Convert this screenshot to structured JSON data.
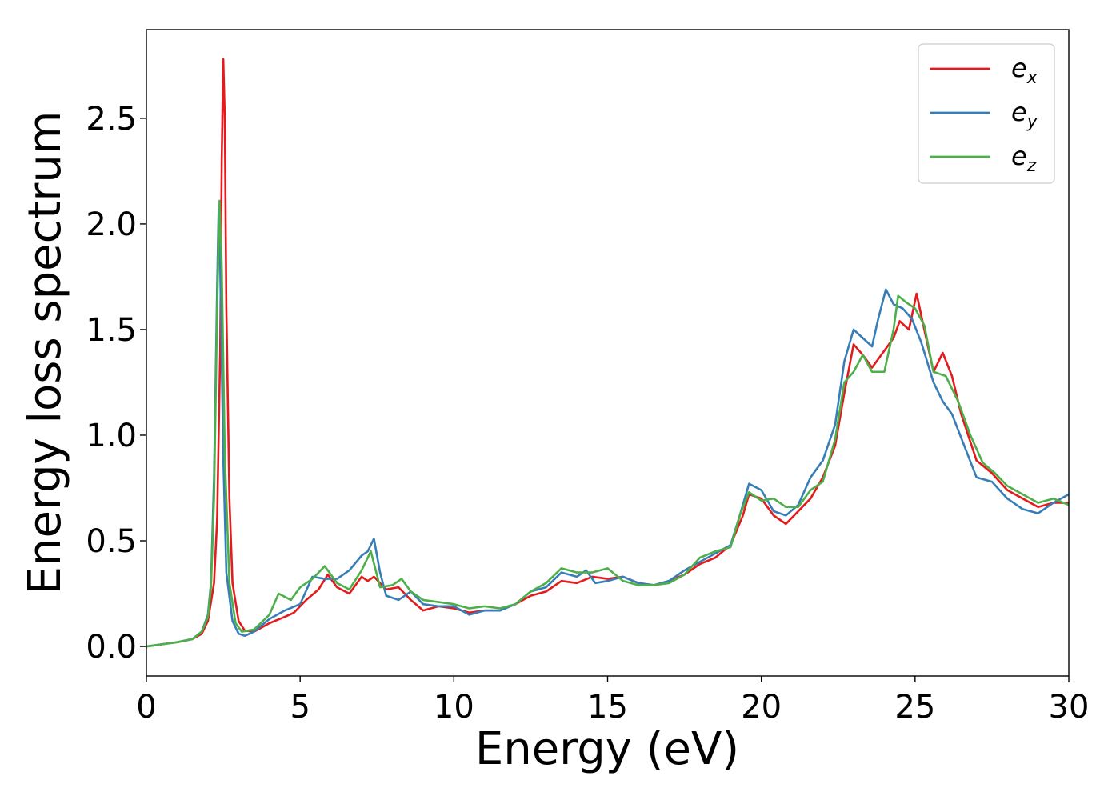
{
  "chart_data": {
    "type": "line",
    "title": "",
    "xlabel": "Energy (eV)",
    "ylabel": "Energy loss spectrum",
    "xlim": [
      0,
      30
    ],
    "ylim": [
      -0.14,
      2.92
    ],
    "xticks": [
      0,
      5,
      10,
      15,
      20,
      25,
      30
    ],
    "yticks": [
      0.0,
      0.5,
      1.0,
      1.5,
      2.0,
      2.5
    ],
    "xtick_labels": [
      "0",
      "5",
      "10",
      "15",
      "20",
      "25",
      "30"
    ],
    "ytick_labels": [
      "0.0",
      "0.5",
      "1.0",
      "1.5",
      "2.0",
      "2.5"
    ],
    "grid": false,
    "legend_position": "top-right",
    "series": [
      {
        "name": "ex",
        "label_base": "e",
        "label_sub": "x",
        "color": "#e41a1c",
        "points": [
          [
            0,
            0.0
          ],
          [
            0.5,
            0.01
          ],
          [
            1.0,
            0.02
          ],
          [
            1.5,
            0.035
          ],
          [
            1.8,
            0.06
          ],
          [
            2.0,
            0.12
          ],
          [
            2.2,
            0.3
          ],
          [
            2.3,
            0.6
          ],
          [
            2.4,
            1.4
          ],
          [
            2.45,
            2.3
          ],
          [
            2.5,
            2.78
          ],
          [
            2.55,
            2.5
          ],
          [
            2.6,
            1.6
          ],
          [
            2.7,
            0.7
          ],
          [
            2.8,
            0.3
          ],
          [
            3.0,
            0.12
          ],
          [
            3.2,
            0.075
          ],
          [
            3.5,
            0.07
          ],
          [
            4.0,
            0.11
          ],
          [
            4.5,
            0.14
          ],
          [
            4.8,
            0.16
          ],
          [
            5.2,
            0.22
          ],
          [
            5.6,
            0.27
          ],
          [
            5.9,
            0.34
          ],
          [
            6.2,
            0.28
          ],
          [
            6.6,
            0.25
          ],
          [
            7.0,
            0.33
          ],
          [
            7.2,
            0.31
          ],
          [
            7.4,
            0.33
          ],
          [
            7.8,
            0.27
          ],
          [
            8.2,
            0.28
          ],
          [
            8.6,
            0.22
          ],
          [
            9.0,
            0.17
          ],
          [
            9.5,
            0.19
          ],
          [
            10.0,
            0.18
          ],
          [
            10.5,
            0.16
          ],
          [
            11.0,
            0.17
          ],
          [
            11.5,
            0.17
          ],
          [
            12.0,
            0.2
          ],
          [
            12.5,
            0.24
          ],
          [
            13.0,
            0.26
          ],
          [
            13.5,
            0.31
          ],
          [
            14.0,
            0.3
          ],
          [
            14.5,
            0.33
          ],
          [
            15.0,
            0.32
          ],
          [
            15.5,
            0.33
          ],
          [
            16.0,
            0.3
          ],
          [
            16.5,
            0.29
          ],
          [
            17.0,
            0.31
          ],
          [
            17.5,
            0.34
          ],
          [
            18.0,
            0.39
          ],
          [
            18.5,
            0.42
          ],
          [
            19.0,
            0.48
          ],
          [
            19.4,
            0.62
          ],
          [
            19.6,
            0.72
          ],
          [
            20.0,
            0.7
          ],
          [
            20.4,
            0.62
          ],
          [
            20.8,
            0.58
          ],
          [
            21.2,
            0.64
          ],
          [
            21.6,
            0.7
          ],
          [
            22.0,
            0.8
          ],
          [
            22.4,
            0.95
          ],
          [
            22.7,
            1.2
          ],
          [
            23.0,
            1.43
          ],
          [
            23.3,
            1.38
          ],
          [
            23.6,
            1.32
          ],
          [
            24.0,
            1.4
          ],
          [
            24.3,
            1.46
          ],
          [
            24.5,
            1.54
          ],
          [
            24.8,
            1.5
          ],
          [
            25.05,
            1.67
          ],
          [
            25.3,
            1.5
          ],
          [
            25.6,
            1.3
          ],
          [
            25.9,
            1.39
          ],
          [
            26.2,
            1.28
          ],
          [
            26.5,
            1.1
          ],
          [
            27.0,
            0.88
          ],
          [
            27.5,
            0.82
          ],
          [
            28.0,
            0.74
          ],
          [
            28.5,
            0.7
          ],
          [
            29.0,
            0.66
          ],
          [
            29.5,
            0.68
          ],
          [
            30.0,
            0.68
          ]
        ]
      },
      {
        "name": "ey",
        "label_base": "e",
        "label_sub": "y",
        "color": "#377eb8",
        "points": [
          [
            0,
            0.0
          ],
          [
            0.5,
            0.01
          ],
          [
            1.0,
            0.02
          ],
          [
            1.5,
            0.035
          ],
          [
            1.8,
            0.07
          ],
          [
            2.0,
            0.15
          ],
          [
            2.1,
            0.3
          ],
          [
            2.2,
            0.8
          ],
          [
            2.3,
            1.7
          ],
          [
            2.35,
            2.07
          ],
          [
            2.4,
            1.8
          ],
          [
            2.5,
            0.9
          ],
          [
            2.6,
            0.35
          ],
          [
            2.8,
            0.12
          ],
          [
            3.0,
            0.06
          ],
          [
            3.2,
            0.05
          ],
          [
            3.5,
            0.07
          ],
          [
            4.0,
            0.13
          ],
          [
            4.5,
            0.17
          ],
          [
            5.0,
            0.2
          ],
          [
            5.4,
            0.33
          ],
          [
            5.8,
            0.32
          ],
          [
            6.2,
            0.32
          ],
          [
            6.6,
            0.36
          ],
          [
            7.0,
            0.43
          ],
          [
            7.2,
            0.45
          ],
          [
            7.4,
            0.51
          ],
          [
            7.6,
            0.35
          ],
          [
            7.8,
            0.24
          ],
          [
            8.2,
            0.22
          ],
          [
            8.6,
            0.26
          ],
          [
            9.0,
            0.2
          ],
          [
            9.5,
            0.19
          ],
          [
            10.0,
            0.19
          ],
          [
            10.5,
            0.15
          ],
          [
            11.0,
            0.17
          ],
          [
            11.5,
            0.17
          ],
          [
            12.0,
            0.2
          ],
          [
            12.5,
            0.26
          ],
          [
            13.0,
            0.28
          ],
          [
            13.5,
            0.35
          ],
          [
            14.0,
            0.33
          ],
          [
            14.3,
            0.36
          ],
          [
            14.6,
            0.3
          ],
          [
            15.0,
            0.31
          ],
          [
            15.5,
            0.33
          ],
          [
            16.0,
            0.3
          ],
          [
            16.5,
            0.29
          ],
          [
            17.0,
            0.31
          ],
          [
            17.5,
            0.36
          ],
          [
            18.0,
            0.4
          ],
          [
            18.5,
            0.44
          ],
          [
            19.0,
            0.48
          ],
          [
            19.3,
            0.62
          ],
          [
            19.6,
            0.77
          ],
          [
            20.0,
            0.74
          ],
          [
            20.4,
            0.64
          ],
          [
            20.8,
            0.62
          ],
          [
            21.2,
            0.67
          ],
          [
            21.6,
            0.8
          ],
          [
            22.0,
            0.88
          ],
          [
            22.4,
            1.05
          ],
          [
            22.7,
            1.35
          ],
          [
            23.0,
            1.5
          ],
          [
            23.3,
            1.46
          ],
          [
            23.6,
            1.42
          ],
          [
            23.8,
            1.55
          ],
          [
            24.05,
            1.69
          ],
          [
            24.3,
            1.62
          ],
          [
            24.6,
            1.6
          ],
          [
            24.9,
            1.55
          ],
          [
            25.2,
            1.44
          ],
          [
            25.6,
            1.25
          ],
          [
            25.9,
            1.16
          ],
          [
            26.2,
            1.1
          ],
          [
            26.6,
            0.95
          ],
          [
            27.0,
            0.8
          ],
          [
            27.5,
            0.78
          ],
          [
            28.0,
            0.7
          ],
          [
            28.5,
            0.65
          ],
          [
            29.0,
            0.63
          ],
          [
            29.5,
            0.68
          ],
          [
            30.0,
            0.72
          ]
        ]
      },
      {
        "name": "ez",
        "label_base": "e",
        "label_sub": "z",
        "color": "#4daf4a",
        "points": [
          [
            0,
            0.0
          ],
          [
            0.5,
            0.01
          ],
          [
            1.0,
            0.02
          ],
          [
            1.5,
            0.035
          ],
          [
            1.8,
            0.07
          ],
          [
            2.0,
            0.14
          ],
          [
            2.1,
            0.28
          ],
          [
            2.2,
            0.7
          ],
          [
            2.3,
            1.6
          ],
          [
            2.38,
            2.11
          ],
          [
            2.45,
            1.8
          ],
          [
            2.55,
            0.9
          ],
          [
            2.7,
            0.3
          ],
          [
            2.9,
            0.11
          ],
          [
            3.1,
            0.07
          ],
          [
            3.5,
            0.08
          ],
          [
            4.0,
            0.15
          ],
          [
            4.3,
            0.25
          ],
          [
            4.7,
            0.22
          ],
          [
            5.0,
            0.28
          ],
          [
            5.4,
            0.32
          ],
          [
            5.8,
            0.38
          ],
          [
            6.2,
            0.3
          ],
          [
            6.6,
            0.27
          ],
          [
            7.0,
            0.36
          ],
          [
            7.3,
            0.45
          ],
          [
            7.6,
            0.28
          ],
          [
            8.0,
            0.29
          ],
          [
            8.3,
            0.32
          ],
          [
            8.6,
            0.26
          ],
          [
            9.0,
            0.22
          ],
          [
            9.5,
            0.21
          ],
          [
            10.0,
            0.2
          ],
          [
            10.5,
            0.18
          ],
          [
            11.0,
            0.19
          ],
          [
            11.5,
            0.18
          ],
          [
            12.0,
            0.2
          ],
          [
            12.5,
            0.26
          ],
          [
            13.0,
            0.3
          ],
          [
            13.5,
            0.37
          ],
          [
            14.0,
            0.35
          ],
          [
            14.5,
            0.35
          ],
          [
            15.0,
            0.37
          ],
          [
            15.5,
            0.31
          ],
          [
            16.0,
            0.29
          ],
          [
            16.5,
            0.29
          ],
          [
            17.0,
            0.3
          ],
          [
            17.5,
            0.34
          ],
          [
            18.0,
            0.42
          ],
          [
            18.5,
            0.45
          ],
          [
            19.0,
            0.47
          ],
          [
            19.3,
            0.62
          ],
          [
            19.6,
            0.73
          ],
          [
            20.0,
            0.69
          ],
          [
            20.4,
            0.7
          ],
          [
            20.8,
            0.66
          ],
          [
            21.2,
            0.66
          ],
          [
            21.6,
            0.74
          ],
          [
            22.0,
            0.78
          ],
          [
            22.4,
            0.98
          ],
          [
            22.7,
            1.25
          ],
          [
            23.0,
            1.3
          ],
          [
            23.3,
            1.38
          ],
          [
            23.6,
            1.3
          ],
          [
            24.0,
            1.3
          ],
          [
            24.3,
            1.5
          ],
          [
            24.45,
            1.66
          ],
          [
            24.7,
            1.63
          ],
          [
            25.0,
            1.6
          ],
          [
            25.3,
            1.52
          ],
          [
            25.6,
            1.3
          ],
          [
            26.0,
            1.28
          ],
          [
            26.4,
            1.16
          ],
          [
            26.8,
            1.0
          ],
          [
            27.2,
            0.87
          ],
          [
            27.6,
            0.82
          ],
          [
            28.0,
            0.76
          ],
          [
            28.5,
            0.72
          ],
          [
            29.0,
            0.68
          ],
          [
            29.5,
            0.7
          ],
          [
            30.0,
            0.67
          ]
        ]
      }
    ]
  }
}
